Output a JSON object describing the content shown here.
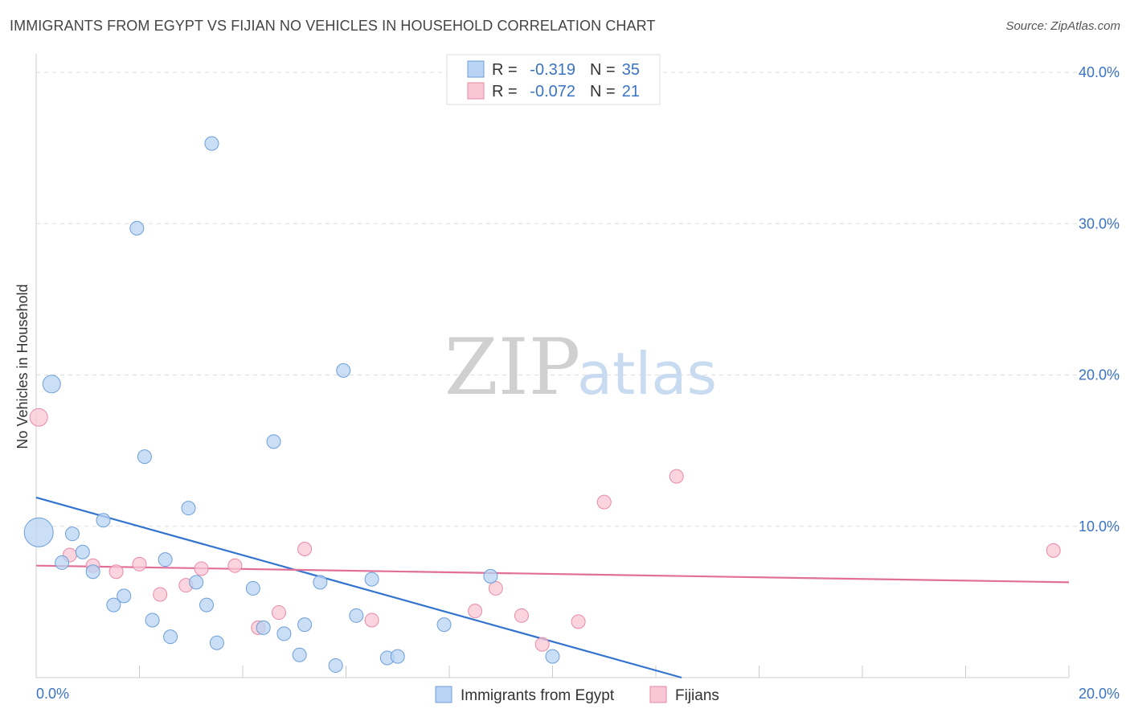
{
  "title": "IMMIGRANTS FROM EGYPT VS FIJIAN NO VEHICLES IN HOUSEHOLD CORRELATION CHART",
  "source": "Source: ZipAtlas.com",
  "watermark": {
    "zip": "ZIP",
    "atlas": "atlas"
  },
  "stats_legend": [
    {
      "r_label": "R =",
      "r_value": "-0.319",
      "n_label": "N =",
      "n_value": "35",
      "color": "#b8d3f3"
    },
    {
      "r_label": "R =",
      "r_value": "-0.072",
      "n_label": "N =",
      "n_value": "21",
      "color": "#f8c6d4"
    }
  ],
  "chart_data": {
    "type": "scatter",
    "title": "IMMIGRANTS FROM EGYPT VS FIJIAN NO VEHICLES IN HOUSEHOLD CORRELATION CHART",
    "xlabel": "",
    "ylabel": "No Vehicles in Household",
    "xlim": [
      0,
      20
    ],
    "ylim": [
      0,
      40
    ],
    "x_tick_labels": {
      "min": "0.0%",
      "max": "20.0%"
    },
    "y_ticks": [
      10,
      20,
      30,
      40
    ],
    "y_tick_labels": [
      "10.0%",
      "20.0%",
      "30.0%",
      "40.0%"
    ],
    "grid": true,
    "legend_position": "bottom",
    "series": [
      {
        "name": "Immigrants from Egypt",
        "color": "#b8d3f3",
        "stroke": "#6d9fd8",
        "trend_color": "#3274d0",
        "trend": {
          "x0": 0,
          "y0": 11.9,
          "x1": 12.5,
          "y1": 0
        },
        "points": [
          {
            "x": 0.05,
            "y": 9.6,
            "big": true
          },
          {
            "x": 0.3,
            "y": 19.4,
            "big": true
          },
          {
            "x": 0.5,
            "y": 7.6
          },
          {
            "x": 0.7,
            "y": 9.5
          },
          {
            "x": 0.9,
            "y": 8.3
          },
          {
            "x": 1.1,
            "y": 7.0
          },
          {
            "x": 1.3,
            "y": 10.4
          },
          {
            "x": 1.5,
            "y": 4.8
          },
          {
            "x": 1.7,
            "y": 5.4
          },
          {
            "x": 1.95,
            "y": 29.7
          },
          {
            "x": 2.1,
            "y": 14.6
          },
          {
            "x": 2.25,
            "y": 3.8
          },
          {
            "x": 2.5,
            "y": 7.8
          },
          {
            "x": 2.6,
            "y": 2.7
          },
          {
            "x": 2.95,
            "y": 11.2
          },
          {
            "x": 3.1,
            "y": 6.3
          },
          {
            "x": 3.3,
            "y": 4.8
          },
          {
            "x": 3.4,
            "y": 35.3
          },
          {
            "x": 3.5,
            "y": 2.3
          },
          {
            "x": 4.2,
            "y": 5.9
          },
          {
            "x": 4.4,
            "y": 3.3
          },
          {
            "x": 4.6,
            "y": 15.6
          },
          {
            "x": 4.8,
            "y": 2.9
          },
          {
            "x": 5.1,
            "y": 1.5
          },
          {
            "x": 5.2,
            "y": 3.5
          },
          {
            "x": 5.5,
            "y": 6.3
          },
          {
            "x": 5.8,
            "y": 0.8
          },
          {
            "x": 5.95,
            "y": 20.3
          },
          {
            "x": 6.2,
            "y": 4.1
          },
          {
            "x": 6.5,
            "y": 6.5
          },
          {
            "x": 6.8,
            "y": 1.3
          },
          {
            "x": 7.0,
            "y": 1.4
          },
          {
            "x": 7.9,
            "y": 3.5
          },
          {
            "x": 8.8,
            "y": 6.7
          },
          {
            "x": 10.0,
            "y": 1.4
          }
        ]
      },
      {
        "name": "Fijians",
        "color": "#f8c6d4",
        "stroke": "#e88aa6",
        "trend_color": "#e0709a",
        "trend": {
          "x0": 0,
          "y0": 7.4,
          "x1": 20,
          "y1": 6.3
        },
        "points": [
          {
            "x": 0.05,
            "y": 17.2,
            "big": true
          },
          {
            "x": 0.65,
            "y": 8.1
          },
          {
            "x": 1.1,
            "y": 7.4
          },
          {
            "x": 1.55,
            "y": 7.0
          },
          {
            "x": 2.0,
            "y": 7.5
          },
          {
            "x": 2.4,
            "y": 5.5
          },
          {
            "x": 2.9,
            "y": 6.1
          },
          {
            "x": 3.2,
            "y": 7.2
          },
          {
            "x": 3.85,
            "y": 7.4
          },
          {
            "x": 4.3,
            "y": 3.3
          },
          {
            "x": 4.7,
            "y": 4.3
          },
          {
            "x": 5.2,
            "y": 8.5
          },
          {
            "x": 6.5,
            "y": 3.8
          },
          {
            "x": 8.5,
            "y": 4.4
          },
          {
            "x": 8.9,
            "y": 5.9
          },
          {
            "x": 9.4,
            "y": 4.1
          },
          {
            "x": 9.8,
            "y": 2.2
          },
          {
            "x": 10.5,
            "y": 3.7
          },
          {
            "x": 11.0,
            "y": 11.6
          },
          {
            "x": 12.4,
            "y": 13.3
          },
          {
            "x": 19.7,
            "y": 8.4
          }
        ]
      }
    ]
  }
}
